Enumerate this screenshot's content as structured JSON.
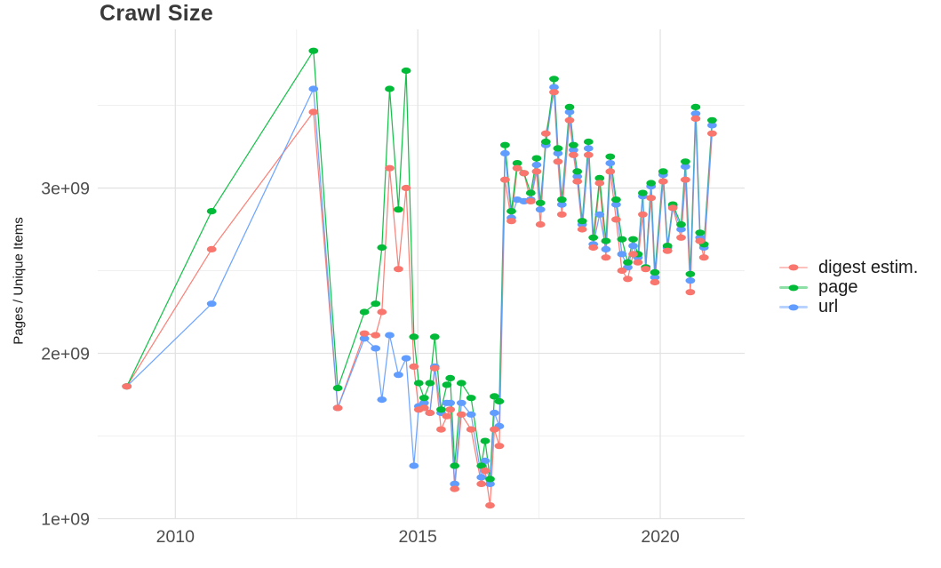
{
  "figure": {
    "title": "Crawl Size"
  },
  "chart_data": {
    "type": "line",
    "title": "Crawl Size",
    "xlabel": "",
    "ylabel": "Pages / Unique Items",
    "value_unit": "billions of pages (1e9)",
    "grid": true,
    "legend_position": "right",
    "xlim": [
      2008.4,
      2021.74
    ],
    "ylim_billions": [
      1.0,
      3.96
    ],
    "x_major_ticks": [
      {
        "value": 2010,
        "label": "2010"
      },
      {
        "value": 2015,
        "label": "2015"
      },
      {
        "value": 2020,
        "label": "2020"
      }
    ],
    "x_minor_gridlines": [
      2012.5,
      2017.5
    ],
    "y_major_ticks": [
      {
        "value": 1,
        "label": "1e+09"
      },
      {
        "value": 2,
        "label": "2e+09"
      },
      {
        "value": 3,
        "label": "3e+09"
      }
    ],
    "y_minor_gridlines": [
      1.5,
      2.5,
      3.5
    ],
    "colors": {
      "major_grid": "#e3e3e3",
      "minor_grid": "#f0f0f0",
      "tick_label": "#4d4d4d",
      "title_text": "#3a3a3a",
      "axis_title_text": "#141414"
    },
    "x_years": [
      2009.0,
      2010.75,
      2012.85,
      2013.35,
      2013.9,
      2014.13,
      2014.26,
      2014.42,
      2014.6,
      2014.76,
      2014.92,
      2015.02,
      2015.13,
      2015.25,
      2015.35,
      2015.48,
      2015.6,
      2015.67,
      2015.76,
      2015.9,
      2016.1,
      2016.31,
      2016.39,
      2016.49,
      2016.58,
      2016.68,
      2016.8,
      2016.93,
      2017.05,
      2017.19,
      2017.33,
      2017.45,
      2017.53,
      2017.64,
      2017.81,
      2017.89,
      2017.97,
      2018.13,
      2018.21,
      2018.29,
      2018.39,
      2018.52,
      2018.62,
      2018.75,
      2018.88,
      2018.97,
      2019.09,
      2019.21,
      2019.33,
      2019.44,
      2019.54,
      2019.64,
      2019.7,
      2019.81,
      2019.89,
      2020.06,
      2020.15,
      2020.26,
      2020.43,
      2020.52,
      2020.62,
      2020.73,
      2020.82,
      2020.9,
      2021.07
    ],
    "series": [
      {
        "name": "digest estim.",
        "color": "#F8766D",
        "values_billions": [
          1.8,
          2.63,
          3.46,
          1.67,
          2.12,
          2.11,
          2.25,
          3.12,
          2.51,
          3.0,
          1.92,
          1.66,
          1.67,
          1.64,
          1.91,
          1.54,
          1.62,
          1.66,
          1.18,
          1.63,
          1.54,
          1.21,
          1.29,
          1.08,
          1.54,
          1.44,
          3.05,
          2.8,
          3.12,
          3.09,
          2.92,
          3.1,
          2.78,
          3.33,
          3.58,
          3.16,
          2.84,
          3.41,
          3.2,
          3.04,
          2.75,
          3.2,
          2.64,
          3.03,
          2.58,
          3.1,
          2.81,
          2.5,
          2.45,
          2.6,
          2.55,
          2.84,
          2.51,
          2.94,
          2.43,
          3.04,
          2.62,
          2.88,
          2.7,
          3.05,
          2.37,
          3.42,
          2.68,
          2.58,
          3.33
        ]
      },
      {
        "name": "page",
        "color": "#00BA38",
        "values_billions": [
          1.8,
          2.86,
          3.83,
          1.79,
          2.25,
          2.3,
          2.64,
          3.6,
          2.87,
          3.71,
          2.1,
          1.82,
          1.73,
          1.82,
          2.1,
          1.66,
          1.81,
          1.85,
          1.32,
          1.82,
          1.73,
          1.32,
          1.47,
          1.24,
          1.74,
          1.71,
          3.26,
          2.86,
          3.15,
          3.09,
          2.97,
          3.18,
          2.91,
          3.28,
          3.66,
          3.24,
          2.93,
          3.49,
          3.26,
          3.1,
          2.8,
          3.28,
          2.7,
          3.06,
          2.68,
          3.19,
          2.93,
          2.69,
          2.55,
          2.69,
          2.6,
          2.97,
          2.52,
          3.03,
          2.49,
          3.1,
          2.65,
          2.9,
          2.78,
          3.16,
          2.48,
          3.49,
          2.73,
          2.66,
          3.41
        ]
      },
      {
        "name": "url",
        "color": "#619CFF",
        "values_billions": [
          1.8,
          2.3,
          3.6,
          1.67,
          2.09,
          2.03,
          1.72,
          2.11,
          1.87,
          1.97,
          1.32,
          1.68,
          1.7,
          1.64,
          1.92,
          1.64,
          1.7,
          1.7,
          1.21,
          1.7,
          1.63,
          1.25,
          1.35,
          1.21,
          1.64,
          1.56,
          3.21,
          2.82,
          2.93,
          2.92,
          2.93,
          3.14,
          2.87,
          3.26,
          3.61,
          3.21,
          2.9,
          3.46,
          3.23,
          3.07,
          2.78,
          3.24,
          2.66,
          2.84,
          2.63,
          3.15,
          2.9,
          2.6,
          2.52,
          2.65,
          2.58,
          2.95,
          2.52,
          3.01,
          2.46,
          3.08,
          2.64,
          2.89,
          2.75,
          3.13,
          2.44,
          3.45,
          2.7,
          2.64,
          3.38
        ]
      }
    ]
  }
}
